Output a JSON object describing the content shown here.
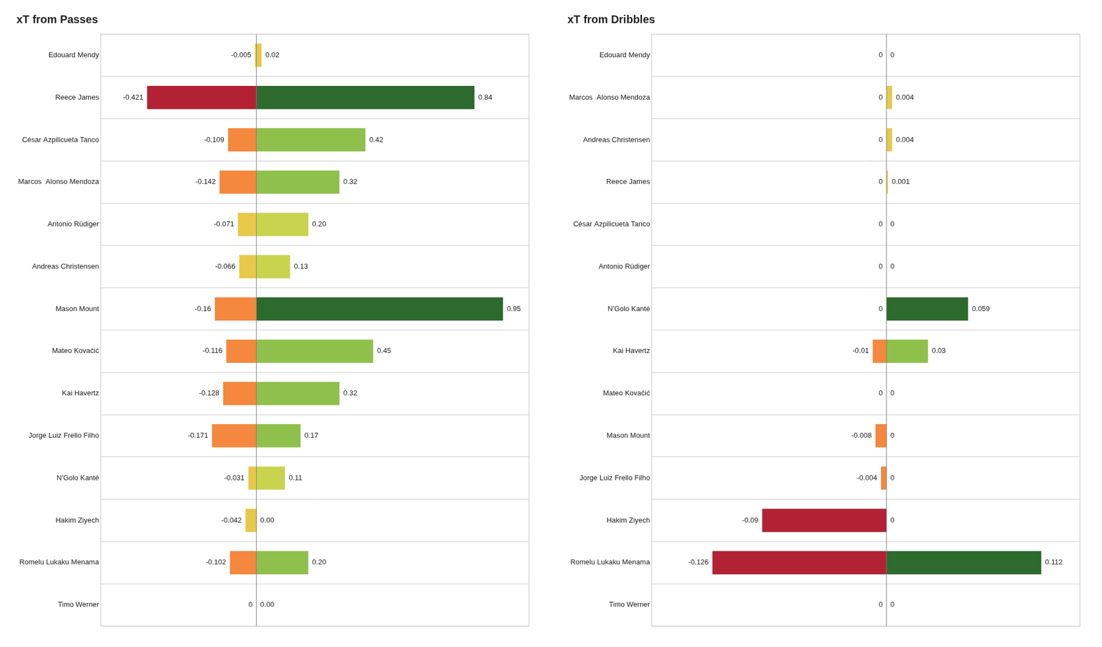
{
  "chart_data": [
    {
      "type": "bar",
      "orientation": "horizontal",
      "stacked": true,
      "title": "xT from Passes",
      "categories": [
        "Edouard Mendy",
        "Reece James",
        "César Azpilicueta Tanco",
        "Marcos  Alonso Mendoza",
        "Antonio Rüdiger",
        "Andreas Christensen",
        "Mason Mount",
        "Mateo Kovačić",
        "Kai Havertz",
        "Jorge Luiz Frello Filho",
        "N'Golo Kanté",
        "Hakim Ziyech",
        "Romelu Lukaku Menama",
        "Timo Werner"
      ],
      "series": [
        {
          "values": [
            -0.005,
            -0.421,
            -0.109,
            -0.142,
            -0.071,
            -0.066,
            -0.16,
            -0.116,
            -0.128,
            -0.171,
            -0.031,
            -0.042,
            -0.102,
            0.0
          ],
          "value_labels": [
            "-0.005",
            "-0.421",
            "-0.109",
            "-0.142",
            "-0.071",
            "-0.066",
            "-0.16",
            "-0.116",
            "-0.128",
            "-0.171",
            "-0.031",
            "-0.042",
            "-0.102",
            "0"
          ],
          "colors": [
            "#e8c84a",
            "#b22234",
            "#f4883e",
            "#f4883e",
            "#e8c84a",
            "#e8c84a",
            "#f4883e",
            "#f4883e",
            "#f4883e",
            "#f4883e",
            "#e8c84a",
            "#e8c84a",
            "#f4883e",
            "#e8c84a"
          ]
        },
        {
          "values": [
            0.02,
            0.84,
            0.42,
            0.32,
            0.2,
            0.13,
            0.95,
            0.45,
            0.32,
            0.17,
            0.11,
            0.0,
            0.2,
            0.0
          ],
          "value_labels": [
            "0.02",
            "0.84",
            "0.42",
            "0.32",
            "0.20",
            "0.13",
            "0.95",
            "0.45",
            "0.32",
            "0.17",
            "0.11",
            "0.00",
            "0.20",
            "0.00"
          ],
          "colors": [
            "#e8c84a",
            "#2d6a2d",
            "#8fc04c",
            "#8fc04c",
            "#c8d44e",
            "#c8d44e",
            "#2d6a2d",
            "#8fc04c",
            "#8fc04c",
            "#8fc04c",
            "#c8d44e",
            "#c8d44e",
            "#8fc04c",
            "#c8d44e"
          ]
        }
      ],
      "xlim": [
        -0.6,
        1.05
      ],
      "tick_labels": "y",
      "grid": true,
      "data_labels": true
    },
    {
      "type": "bar",
      "orientation": "horizontal",
      "stacked": true,
      "title": "xT from Dribbles",
      "categories": [
        "Edouard Mendy",
        "Marcos  Alonso Mendoza",
        "Andreas Christensen",
        "Reece James",
        "César Azpilicueta Tanco",
        "Antonio Rüdiger",
        "N'Golo Kanté",
        "Kai Havertz",
        "Mateo Kovačić",
        "Mason Mount",
        "Jorge Luiz Frello Filho",
        "Hakim Ziyech",
        "Romelu Lukaku Menama",
        "Timo Werner"
      ],
      "series": [
        {
          "values": [
            0.0,
            0.0,
            0.0,
            0.0,
            0.0,
            0.0,
            0.0,
            -0.01,
            0.0,
            -0.008,
            -0.004,
            -0.09,
            -0.126,
            0.0
          ],
          "value_labels": [
            "0",
            "0",
            "0",
            "0",
            "0",
            "0",
            "0",
            "-0.01",
            "0",
            "-0.008",
            "-0.004",
            "-0.09",
            "-0.126",
            "0"
          ],
          "colors": [
            "#e8c84a",
            "#e8c84a",
            "#e8c84a",
            "#e8c84a",
            "#e8c84a",
            "#e8c84a",
            "#e8c84a",
            "#f4883e",
            "#e8c84a",
            "#f4883e",
            "#f4883e",
            "#b22234",
            "#b22234",
            "#e8c84a"
          ]
        },
        {
          "values": [
            0.0,
            0.004,
            0.004,
            0.001,
            0.0,
            0.0,
            0.059,
            0.03,
            0.0,
            0.0,
            0.0,
            0.0,
            0.112,
            0.0
          ],
          "value_labels": [
            "0",
            "0.004",
            "0.004",
            "0.001",
            "0",
            "0",
            "0.059",
            "0.03",
            "0",
            "0",
            "0",
            "0",
            "0.112",
            "0"
          ],
          "colors": [
            "#e8c84a",
            "#e8c84a",
            "#e8c84a",
            "#e8c84a",
            "#e8c84a",
            "#e8c84a",
            "#2d6a2d",
            "#8fc04c",
            "#e8c84a",
            "#e8c84a",
            "#e8c84a",
            "#e8c84a",
            "#2d6a2d",
            "#e8c84a"
          ]
        }
      ],
      "xlim": [
        -0.17,
        0.14
      ],
      "tick_labels": "y",
      "grid": true,
      "data_labels": true
    }
  ]
}
